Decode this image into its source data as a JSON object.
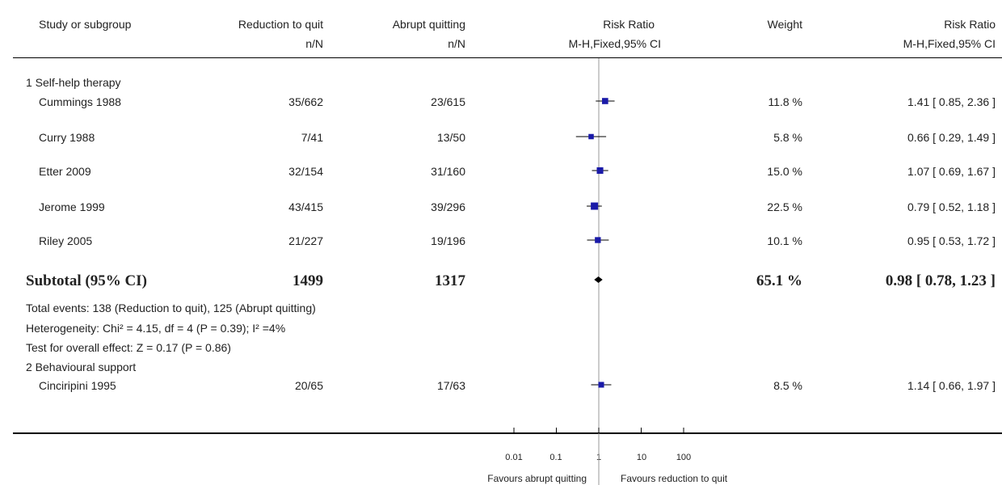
{
  "headers": {
    "study": "Study or subgroup",
    "reduction": "Reduction to quit",
    "reduction_sub": "n/N",
    "abrupt": "Abrupt quitting",
    "abrupt_sub": "n/N",
    "rr": "Risk Ratio",
    "rr_sub": "M-H,Fixed,95% CI",
    "weight": "Weight",
    "rr2": "Risk Ratio",
    "rr2_sub": "M-H,Fixed,95% CI"
  },
  "groups": [
    {
      "title": "1 Self-help therapy",
      "studies": [
        {
          "name": "Cummings 1988",
          "reduction": "35/662",
          "abrupt": "23/615",
          "weight": "11.8 %",
          "ci_text": "1.41 [ 0.85, 2.36 ]"
        },
        {
          "name": "Curry 1988",
          "reduction": "7/41",
          "abrupt": "13/50",
          "weight": "5.8 %",
          "ci_text": "0.66 [ 0.29, 1.49 ]"
        },
        {
          "name": "Etter 2009",
          "reduction": "32/154",
          "abrupt": "31/160",
          "weight": "15.0 %",
          "ci_text": "1.07 [ 0.69, 1.67 ]"
        },
        {
          "name": "Jerome 1999",
          "reduction": "43/415",
          "abrupt": "39/296",
          "weight": "22.5 %",
          "ci_text": "0.79 [ 0.52, 1.18 ]"
        },
        {
          "name": "Riley 2005",
          "reduction": "21/227",
          "abrupt": "19/196",
          "weight": "10.1 %",
          "ci_text": "0.95 [ 0.53, 1.72 ]"
        }
      ],
      "subtotal": {
        "label": "Subtotal (95% CI)",
        "reduction": "1499",
        "abrupt": "1317",
        "weight": "65.1 %",
        "ci_text": "0.98 [ 0.78, 1.23 ]"
      },
      "notes": [
        "Total events: 138 (Reduction to quit), 125 (Abrupt quitting)",
        "Heterogeneity: Chi² = 4.15, df = 4 (P = 0.39); I² =4%",
        "Test for overall effect: Z = 0.17 (P = 0.86)"
      ]
    },
    {
      "title": "2 Behavioural support",
      "studies": [
        {
          "name": "Cinciripini 1995",
          "reduction": "20/65",
          "abrupt": "17/63",
          "weight": "8.5 %",
          "ci_text": "1.14 [ 0.66, 1.97 ]"
        }
      ]
    }
  ],
  "axis": {
    "ticks": [
      "0.01",
      "0.1",
      "1",
      "10",
      "100"
    ],
    "left_label": "Favours abrupt quitting",
    "right_label": "Favours reduction to quit"
  },
  "chart_data": {
    "type": "forest",
    "scale": "log",
    "xlim": [
      0.01,
      100
    ],
    "tick_values": [
      0.01,
      0.1,
      1,
      10,
      100
    ],
    "reference_line": 1,
    "studies": [
      {
        "name": "Cummings 1988",
        "rr": 1.41,
        "lo": 0.85,
        "hi": 2.36,
        "weight": 11.8
      },
      {
        "name": "Curry 1988",
        "rr": 0.66,
        "lo": 0.29,
        "hi": 1.49,
        "weight": 5.8
      },
      {
        "name": "Etter 2009",
        "rr": 1.07,
        "lo": 0.69,
        "hi": 1.67,
        "weight": 15.0
      },
      {
        "name": "Jerome 1999",
        "rr": 0.79,
        "lo": 0.52,
        "hi": 1.18,
        "weight": 22.5
      },
      {
        "name": "Riley 2005",
        "rr": 0.95,
        "lo": 0.53,
        "hi": 1.72,
        "weight": 10.1
      },
      {
        "name": "Cinciripini 1995",
        "rr": 1.14,
        "lo": 0.66,
        "hi": 1.97,
        "weight": 8.5
      }
    ],
    "subtotals": [
      {
        "label": "Subtotal (95% CI)",
        "rr": 0.98,
        "lo": 0.78,
        "hi": 1.23,
        "weight": 65.1
      }
    ]
  }
}
